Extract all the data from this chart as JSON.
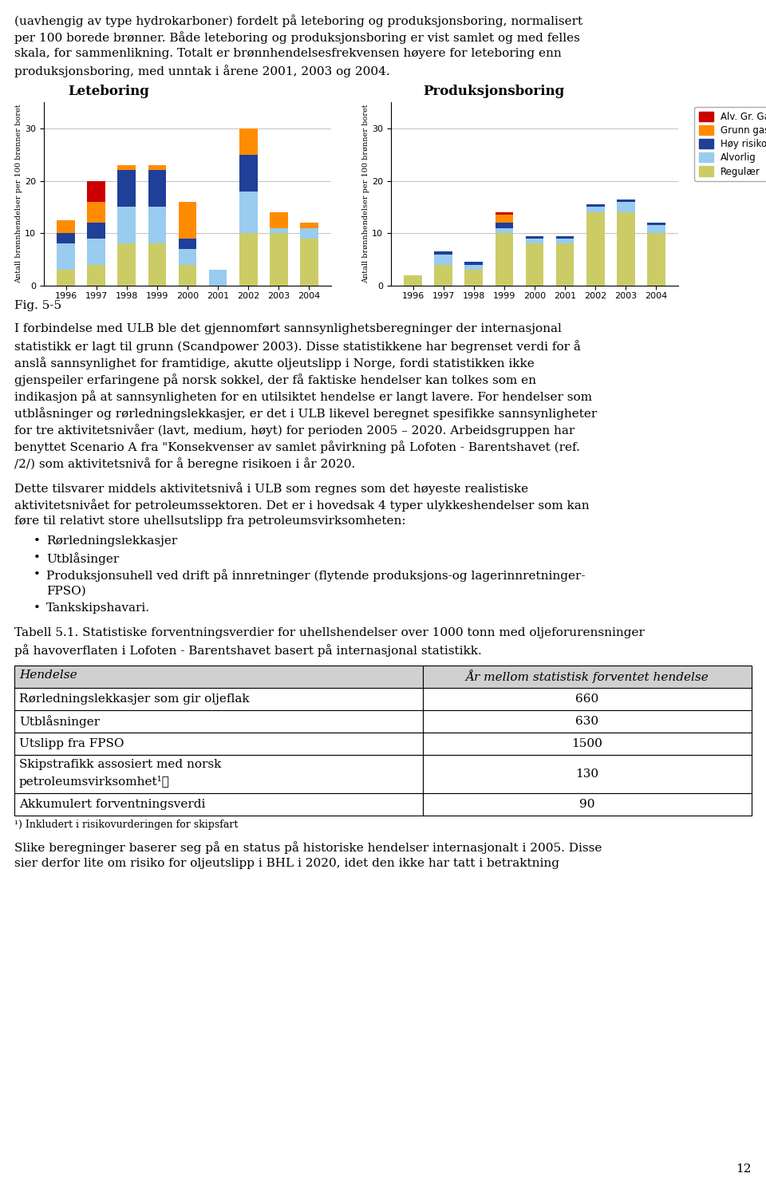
{
  "intro_text_lines": [
    "(uavhengig av type hydrokarboner) fordelt på leteboring og produksjonsboring, normalisert",
    "per 100 borede brønner. Både leteboring og produksjonsboring er vist samlet og med felles",
    "skala, for sammenlikning. Totalt er brønnhendelsesfrekvensen høyere for leteboring enn",
    "produksjonsboring, med unntak i årene 2001, 2003 og 2004."
  ],
  "fig_label": "Fig. 5-5",
  "chart1_title": "Leteboring",
  "chart2_title": "Produksjonsboring",
  "years": [
    1996,
    1997,
    1998,
    1999,
    2000,
    2001,
    2002,
    2003,
    2004
  ],
  "ylabel": "Antall brønnhendelser per 100 brønner boret",
  "ylim": [
    0,
    35
  ],
  "yticks": [
    0,
    10,
    20,
    30
  ],
  "legend_labels": [
    "Alv. Gr. Gass",
    "Grunn gass",
    "Høy risiko",
    "Alvorlig",
    "Regulær"
  ],
  "legend_colors": [
    "#CC0000",
    "#FF8C00",
    "#1F3F99",
    "#99CCEE",
    "#CCCC66"
  ],
  "leteboring": {
    "regulaer": [
      3.0,
      4.0,
      8.0,
      8.0,
      4.0,
      0.0,
      10.0,
      10.0,
      9.0
    ],
    "alvorlig": [
      5.0,
      5.0,
      7.0,
      7.0,
      3.0,
      3.0,
      8.0,
      1.0,
      2.0
    ],
    "hoy_risiko": [
      2.0,
      3.0,
      7.0,
      7.0,
      2.0,
      0.0,
      7.0,
      0.0,
      0.0
    ],
    "grunn_gass": [
      2.5,
      4.0,
      1.0,
      1.0,
      7.0,
      0.0,
      5.0,
      3.0,
      1.0
    ],
    "alv_gr_gass": [
      0.0,
      4.0,
      0.0,
      0.0,
      0.0,
      0.0,
      0.0,
      0.0,
      0.0
    ]
  },
  "produksjonsboring": {
    "regulaer": [
      2.0,
      4.0,
      3.0,
      10.0,
      8.0,
      8.0,
      14.0,
      14.0,
      10.0
    ],
    "alvorlig": [
      0.0,
      2.0,
      1.0,
      1.0,
      1.0,
      1.0,
      1.0,
      2.0,
      1.5
    ],
    "hoy_risiko": [
      0.0,
      0.5,
      0.5,
      1.0,
      0.5,
      0.5,
      0.5,
      0.5,
      0.5
    ],
    "grunn_gass": [
      0.0,
      0.0,
      0.0,
      1.5,
      0.0,
      0.0,
      0.0,
      0.0,
      0.0
    ],
    "alv_gr_gass": [
      0.0,
      0.0,
      0.0,
      0.5,
      0.0,
      0.0,
      0.0,
      0.0,
      0.0
    ]
  },
  "body_text1": [
    "I forbindelse med ULB ble det gjennomført sannsynlighetsberegninger der internasjonal",
    "statistikk er lagt til grunn (Scandpower 2003). Disse statistikkene har begrenset verdi for å",
    "anslå sannsynlighet for framtidige, akutte oljeutslipp i Norge, fordi statistikken ikke",
    "gjenspeiler erfaringene på norsk sokkel, der få faktiske hendelser kan tolkes som en",
    "indikasjon på at sannsynligheten for en utilsiktet hendelse er langt lavere. For hendelser som",
    "utblåsninger og rørledningslekkasjer, er det i ULB likevel beregnet spesifikke sannsynligheter",
    "for tre aktivitetsnivåer (lavt, medium, høyt) for perioden 2005 – 2020. Arbeidsgruppen har",
    "benyttet Scenario A fra \"Konsekvenser av samlet påvirkning på Lofoten - Barentshavet (ref.",
    "/2/) som aktivitetsnivå for å beregne risikoen i år 2020."
  ],
  "body_text2": [
    "Dette tilsvarer middels aktivitetsnivå i ULB som regnes som det høyeste realistiske",
    "aktivitetsnivået for petroleumssektoren. Det er i hovedsak 4 typer ulykkeshendelser som kan",
    "føre til relativt store uhellsutslipp fra petroleumsvirksomheten:"
  ],
  "bullets": [
    "Rørledningslekkasjer",
    "Utblåsinger",
    "Produksjonsuhell ved drift på innretninger (flytende produksjons-og lagerinnretninger-\nFPSO)",
    "Tankskipshavari."
  ],
  "tabell_caption_lines": [
    "Tabell 5.1. Statistiske forventningsverdier for uhellshendelser over 1000 tonn med oljeforurensninger",
    "på havoverflaten i Lofoten - Barentshavet basert på internasjonal statistikk."
  ],
  "table_headers": [
    "Hendelse",
    "År mellom statistisk forventet hendelse"
  ],
  "table_rows": [
    [
      "Rørledningslekkasjer som gir oljeflak",
      "660"
    ],
    [
      "Utblåsninger",
      "630"
    ],
    [
      "Utslipp fra FPSO",
      "1500"
    ],
    [
      "Skipstrafikk assosiert med norsk\npetroleumsvirksomhet¹⧠",
      "130"
    ],
    [
      "Akkumulert forventningsverdi",
      "90"
    ]
  ],
  "table_footnote": "¹) Inkludert i risikovurderingen for skipsfart",
  "bottom_text": [
    "Slike beregninger baserer seg på en status på historiske hendelser internasjonalt i 2005. Disse",
    "sier derfor lite om risiko for oljeutslipp i BHL i 2020, idet den ikke har tatt i betraktning"
  ],
  "page_number": "12",
  "background_color": "#FFFFFF"
}
